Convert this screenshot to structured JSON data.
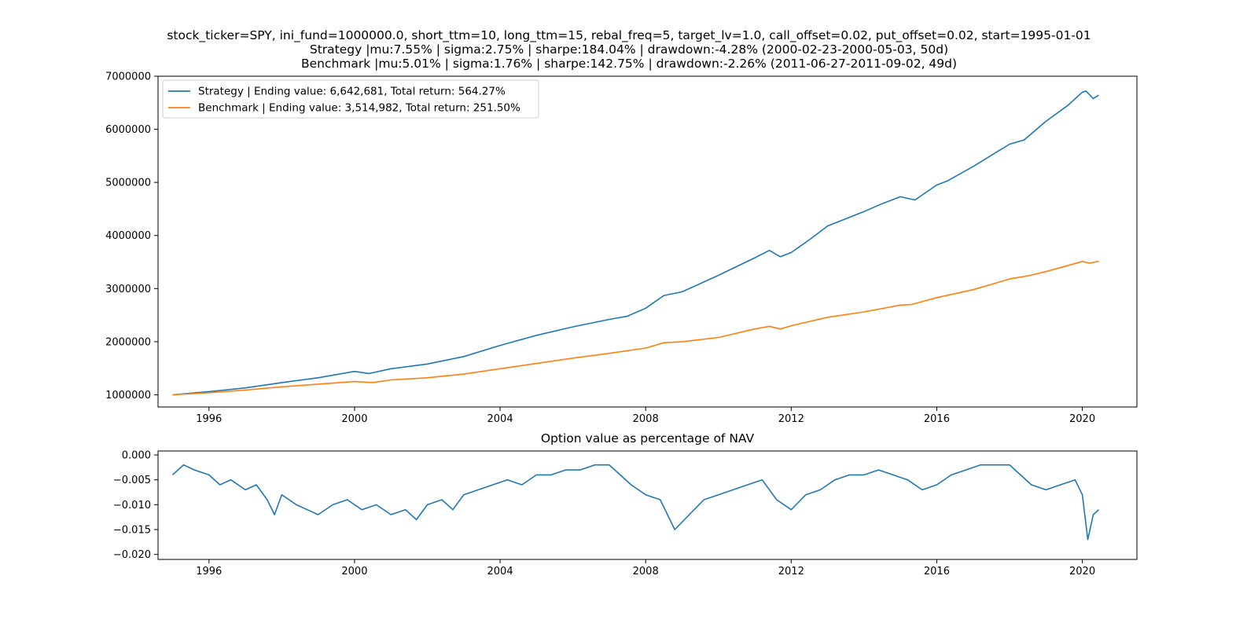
{
  "chart_data": [
    {
      "type": "line",
      "title_lines": [
        "stock_ticker=SPY, ini_fund=1000000.0, short_ttm=10, long_ttm=15, rebal_freq=5, target_lv=1.0, call_offset=0.02, put_offset=0.02, start=1995-01-01",
        "Strategy |mu:7.55% | sigma:2.75% | sharpe:184.04% | drawdown:-4.28% (2000-02-23-2000-05-03, 50d)",
        "Benchmark |mu:5.01% | sigma:1.76% | sharpe:142.75% | drawdown:-2.26% (2011-06-27-2011-09-02, 49d)"
      ],
      "xlabel": "",
      "ylabel": "",
      "xlim": [
        1994.6,
        2021.5
      ],
      "ylim": [
        770000,
        7000000
      ],
      "x_ticks": [
        1996,
        2000,
        2004,
        2008,
        2012,
        2016,
        2020
      ],
      "x_tick_labels": [
        "1996",
        "2000",
        "2004",
        "2008",
        "2012",
        "2016",
        "2020"
      ],
      "y_ticks": [
        1000000,
        2000000,
        3000000,
        4000000,
        5000000,
        6000000,
        7000000
      ],
      "y_tick_labels": [
        "1000000",
        "2000000",
        "3000000",
        "4000000",
        "5000000",
        "6000000",
        "7000000"
      ],
      "grid": false,
      "legend_position": "top-left",
      "series": [
        {
          "name": "Strategy | Ending value: 6,642,681, Total return: 564.27%",
          "color": "#1f77b4",
          "x": [
            1995.0,
            1996.0,
            1997.0,
            1998.0,
            1999.0,
            2000.0,
            2000.4,
            2001.0,
            2002.0,
            2003.0,
            2004.0,
            2005.0,
            2006.0,
            2007.0,
            2007.5,
            2008.0,
            2008.5,
            2009.0,
            2010.0,
            2011.0,
            2011.4,
            2011.7,
            2012.0,
            2012.5,
            2013.0,
            2014.0,
            2014.5,
            2015.0,
            2015.4,
            2016.0,
            2016.3,
            2017.0,
            2018.0,
            2018.4,
            2019.0,
            2019.6,
            2020.0,
            2020.1,
            2020.3,
            2020.45
          ],
          "y": [
            1000000,
            1060000,
            1130000,
            1230000,
            1320000,
            1440000,
            1400000,
            1490000,
            1580000,
            1720000,
            1930000,
            2120000,
            2280000,
            2420000,
            2480000,
            2630000,
            2870000,
            2940000,
            3250000,
            3580000,
            3720000,
            3600000,
            3680000,
            3920000,
            4180000,
            4450000,
            4600000,
            4730000,
            4670000,
            4950000,
            5030000,
            5300000,
            5720000,
            5800000,
            6150000,
            6450000,
            6700000,
            6720000,
            6580000,
            6642681
          ]
        },
        {
          "name": "Benchmark | Ending value: 3,514,982, Total return: 251.50%",
          "color": "#ff7f0e",
          "x": [
            1995.0,
            1996.0,
            1997.0,
            1998.0,
            1999.0,
            2000.0,
            2000.5,
            2001.0,
            2002.0,
            2003.0,
            2004.0,
            2005.0,
            2006.0,
            2007.0,
            2008.0,
            2008.5,
            2009.0,
            2010.0,
            2011.0,
            2011.4,
            2011.7,
            2012.0,
            2013.0,
            2014.0,
            2015.0,
            2015.3,
            2016.0,
            2017.0,
            2018.0,
            2018.5,
            2019.0,
            2020.0,
            2020.2,
            2020.45
          ],
          "y": [
            1000000,
            1040000,
            1090000,
            1150000,
            1200000,
            1250000,
            1230000,
            1280000,
            1320000,
            1390000,
            1490000,
            1590000,
            1690000,
            1780000,
            1880000,
            1980000,
            2000000,
            2080000,
            2240000,
            2290000,
            2240000,
            2300000,
            2460000,
            2560000,
            2690000,
            2700000,
            2830000,
            2980000,
            3180000,
            3240000,
            3320000,
            3510000,
            3480000,
            3514982
          ]
        }
      ]
    },
    {
      "type": "line",
      "title": "Option value as percentage of NAV",
      "xlabel": "",
      "ylabel": "",
      "xlim": [
        1994.6,
        2021.5
      ],
      "ylim": [
        -0.021,
        0.0008
      ],
      "x_ticks": [
        1996,
        2000,
        2004,
        2008,
        2012,
        2016,
        2020
      ],
      "x_tick_labels": [
        "1996",
        "2000",
        "2004",
        "2008",
        "2012",
        "2016",
        "2020"
      ],
      "y_ticks": [
        0.0,
        -0.005,
        -0.01,
        -0.015,
        -0.02
      ],
      "y_tick_labels": [
        "0.000",
        "−0.005",
        "−0.010",
        "−0.015",
        "−0.020"
      ],
      "grid": false,
      "series": [
        {
          "color": "#1f77b4",
          "x": [
            1995.0,
            1995.3,
            1995.6,
            1996.0,
            1996.3,
            1996.6,
            1997.0,
            1997.3,
            1997.6,
            1997.8,
            1998.0,
            1998.4,
            1998.7,
            1999.0,
            1999.4,
            1999.8,
            2000.2,
            2000.6,
            2001.0,
            2001.4,
            2001.7,
            2002.0,
            2002.4,
            2002.7,
            2003.0,
            2003.4,
            2003.8,
            2004.2,
            2004.6,
            2005.0,
            2005.4,
            2005.8,
            2006.2,
            2006.6,
            2007.0,
            2007.3,
            2007.6,
            2008.0,
            2008.4,
            2008.8,
            2009.2,
            2009.6,
            2010.0,
            2010.4,
            2010.8,
            2011.2,
            2011.6,
            2012.0,
            2012.4,
            2012.8,
            2013.2,
            2013.6,
            2014.0,
            2014.4,
            2014.8,
            2015.2,
            2015.6,
            2016.0,
            2016.4,
            2016.8,
            2017.2,
            2017.6,
            2018.0,
            2018.3,
            2018.6,
            2019.0,
            2019.4,
            2019.8,
            2020.0,
            2020.15,
            2020.3,
            2020.45
          ],
          "y": [
            -0.004,
            -0.002,
            -0.003,
            -0.004,
            -0.006,
            -0.005,
            -0.007,
            -0.006,
            -0.009,
            -0.012,
            -0.008,
            -0.01,
            -0.011,
            -0.012,
            -0.01,
            -0.009,
            -0.011,
            -0.01,
            -0.012,
            -0.011,
            -0.013,
            -0.01,
            -0.009,
            -0.011,
            -0.008,
            -0.007,
            -0.006,
            -0.005,
            -0.006,
            -0.004,
            -0.004,
            -0.003,
            -0.003,
            -0.002,
            -0.002,
            -0.004,
            -0.006,
            -0.008,
            -0.009,
            -0.015,
            -0.012,
            -0.009,
            -0.008,
            -0.007,
            -0.006,
            -0.005,
            -0.009,
            -0.011,
            -0.008,
            -0.007,
            -0.005,
            -0.004,
            -0.004,
            -0.003,
            -0.004,
            -0.005,
            -0.007,
            -0.006,
            -0.004,
            -0.003,
            -0.002,
            -0.002,
            -0.002,
            -0.004,
            -0.006,
            -0.007,
            -0.006,
            -0.005,
            -0.008,
            -0.017,
            -0.012,
            -0.011
          ]
        }
      ]
    }
  ]
}
